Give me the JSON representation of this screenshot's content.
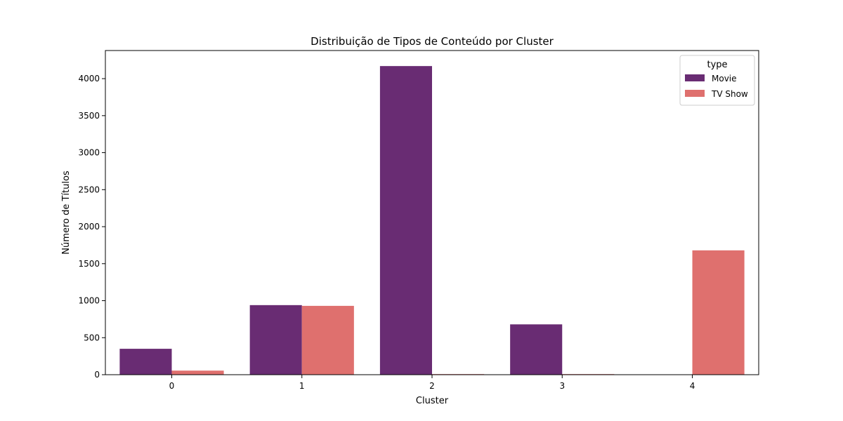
{
  "chart_data": {
    "type": "bar",
    "title": "Distribuição de Tipos de Conteúdo por Cluster",
    "xlabel": "Cluster",
    "ylabel": "Número de Títulos",
    "categories": [
      "0",
      "1",
      "2",
      "3",
      "4"
    ],
    "series": [
      {
        "name": "Movie",
        "color": "#692c73",
        "values": [
          350,
          940,
          4170,
          680,
          0
        ]
      },
      {
        "name": "TV Show",
        "color": "#df706e",
        "values": [
          55,
          930,
          8,
          8,
          1680
        ]
      }
    ],
    "ylim": [
      0,
      4380
    ],
    "yticks": [
      0,
      500,
      1000,
      1500,
      2000,
      2500,
      3000,
      3500,
      4000
    ],
    "legend": {
      "title": "type",
      "placement": "top-right"
    },
    "grid": false
  }
}
